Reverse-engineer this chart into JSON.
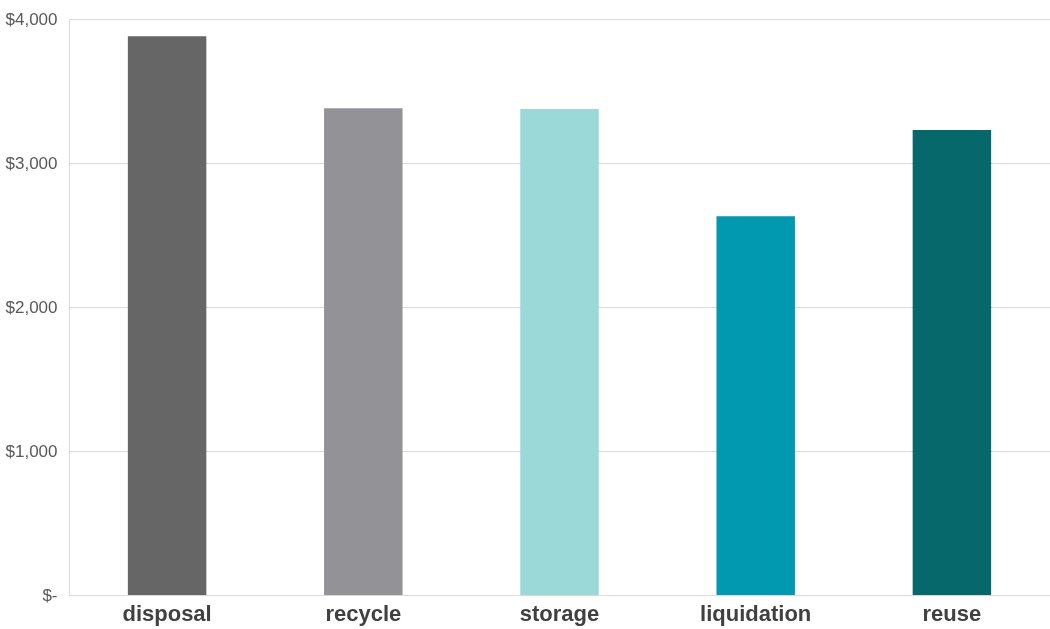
{
  "chart_data": {
    "type": "bar",
    "categories": [
      "disposal",
      "recycle",
      "storage",
      "liquidation",
      "reuse"
    ],
    "values": [
      3880,
      3380,
      3375,
      2630,
      3230
    ],
    "colors": [
      "#666666",
      "#939297",
      "#9bd9d9",
      "#0099b0",
      "#06686b"
    ],
    "ylim": [
      0,
      4000
    ],
    "yticks": [
      {
        "value": 0,
        "label": "$-"
      },
      {
        "value": 1000,
        "label": "$1,000"
      },
      {
        "value": 2000,
        "label": "$2,000"
      },
      {
        "value": 3000,
        "label": "$3,000"
      },
      {
        "value": 4000,
        "label": "$4,000"
      }
    ],
    "grid": "y",
    "legend": false
  }
}
